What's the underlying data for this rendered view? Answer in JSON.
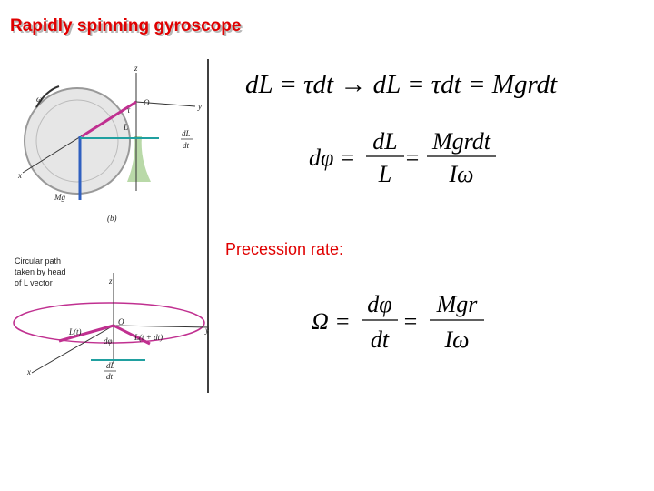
{
  "title": "Rapidly spinning gyroscope",
  "precession_label": "Precession rate:",
  "equation1": "dL = τdt → dL = τdt = Mgrdt",
  "equation2": {
    "lhs": "dφ =",
    "frac1": {
      "num": "dL",
      "den": "L"
    },
    "eq": "=",
    "frac2": {
      "num": "Mgrdt",
      "den": "Iω"
    }
  },
  "equation3": {
    "lhs": "Ω =",
    "frac1": {
      "num": "dφ",
      "den": "dt"
    },
    "eq": "=",
    "frac2": {
      "num": "Mgr",
      "den": "Iω"
    }
  },
  "figure_top": {
    "labels": [
      "z",
      "ω",
      "O",
      "τ",
      "L",
      "y",
      "dL",
      "dt",
      "x",
      "Mg",
      "(b)"
    ]
  },
  "figure_bottom": {
    "caption": [
      "Circular path",
      "taken by head",
      "of L vector"
    ],
    "labels": [
      "z",
      "O",
      "y",
      "L(t)",
      "dφ",
      "L(t + dt)",
      "x",
      "dL",
      "dt"
    ]
  }
}
